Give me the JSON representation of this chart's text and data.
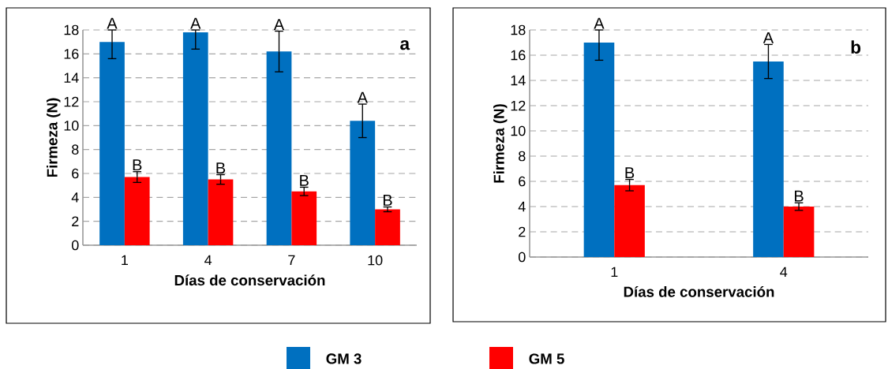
{
  "chart_data": [
    {
      "type": "bar",
      "xlabel": "Días de conservación",
      "ylabel": "Firmeza (N)",
      "categories": [
        "1",
        "4",
        "7",
        "10"
      ],
      "series": [
        {
          "name": "GM 3",
          "color": "#0070c0",
          "values": [
            17.0,
            17.8,
            16.2,
            10.4
          ],
          "errors": [
            [
              15.6,
              18.0
            ],
            [
              16.4,
              18.0
            ],
            [
              14.5,
              17.9
            ],
            [
              9.0,
              11.8
            ]
          ]
        },
        {
          "name": "GM 5",
          "color": "#ff0000",
          "values": [
            5.7,
            5.5,
            4.5,
            3.0
          ],
          "errors": [
            [
              5.25,
              6.15
            ],
            [
              5.1,
              5.9
            ],
            [
              4.15,
              4.85
            ],
            [
              2.8,
              3.2
            ]
          ]
        }
      ],
      "ylim": [
        0,
        18
      ],
      "yticks": [
        0,
        2,
        4,
        6,
        8,
        10,
        12,
        14,
        16,
        18
      ],
      "grid": "y",
      "legend": "bottom",
      "annotations": [
        "a",
        {
          "text": "A",
          "x": "1",
          "y": 17.0
        },
        {
          "text": "A",
          "x": "4",
          "y": 17.8
        },
        {
          "text": "A",
          "x": "7",
          "y": 16.2
        },
        {
          "text": "A",
          "x": "10",
          "y": 10.4
        },
        {
          "text": "B",
          "x": "1",
          "y": 5.7
        },
        {
          "text": "B",
          "x": "4",
          "y": 5.5
        },
        {
          "text": "B",
          "x": "7",
          "y": 4.5
        },
        {
          "text": "B",
          "x": "10",
          "y": 3.0
        }
      ]
    },
    {
      "type": "bar",
      "xlabel": "Días de conservación",
      "ylabel": "Firmeza (N)",
      "categories": [
        "1",
        "4"
      ],
      "series": [
        {
          "color": "#0070c0",
          "values": [
            17.0,
            15.5
          ],
          "errors": [
            [
              15.6,
              18.0
            ],
            [
              14.15,
              16.85
            ]
          ]
        },
        {
          "color": "#ff0000",
          "values": [
            5.7,
            4.0
          ],
          "errors": [
            [
              5.25,
              6.15
            ],
            [
              3.7,
              4.3
            ]
          ]
        }
      ],
      "ylim": [
        0,
        18
      ],
      "yticks": [
        0,
        2,
        4,
        6,
        8,
        10,
        12,
        14,
        16,
        18
      ],
      "grid": "y",
      "annotations": [
        "b",
        {
          "text": "A",
          "x": "1",
          "y": 17.0
        },
        {
          "text": "A",
          "x": "4",
          "y": 15.5
        },
        {
          "text": "B",
          "x": "1",
          "y": 5.7
        },
        {
          "text": "B",
          "x": "4",
          "y": 4.0
        }
      ]
    }
  ]
}
